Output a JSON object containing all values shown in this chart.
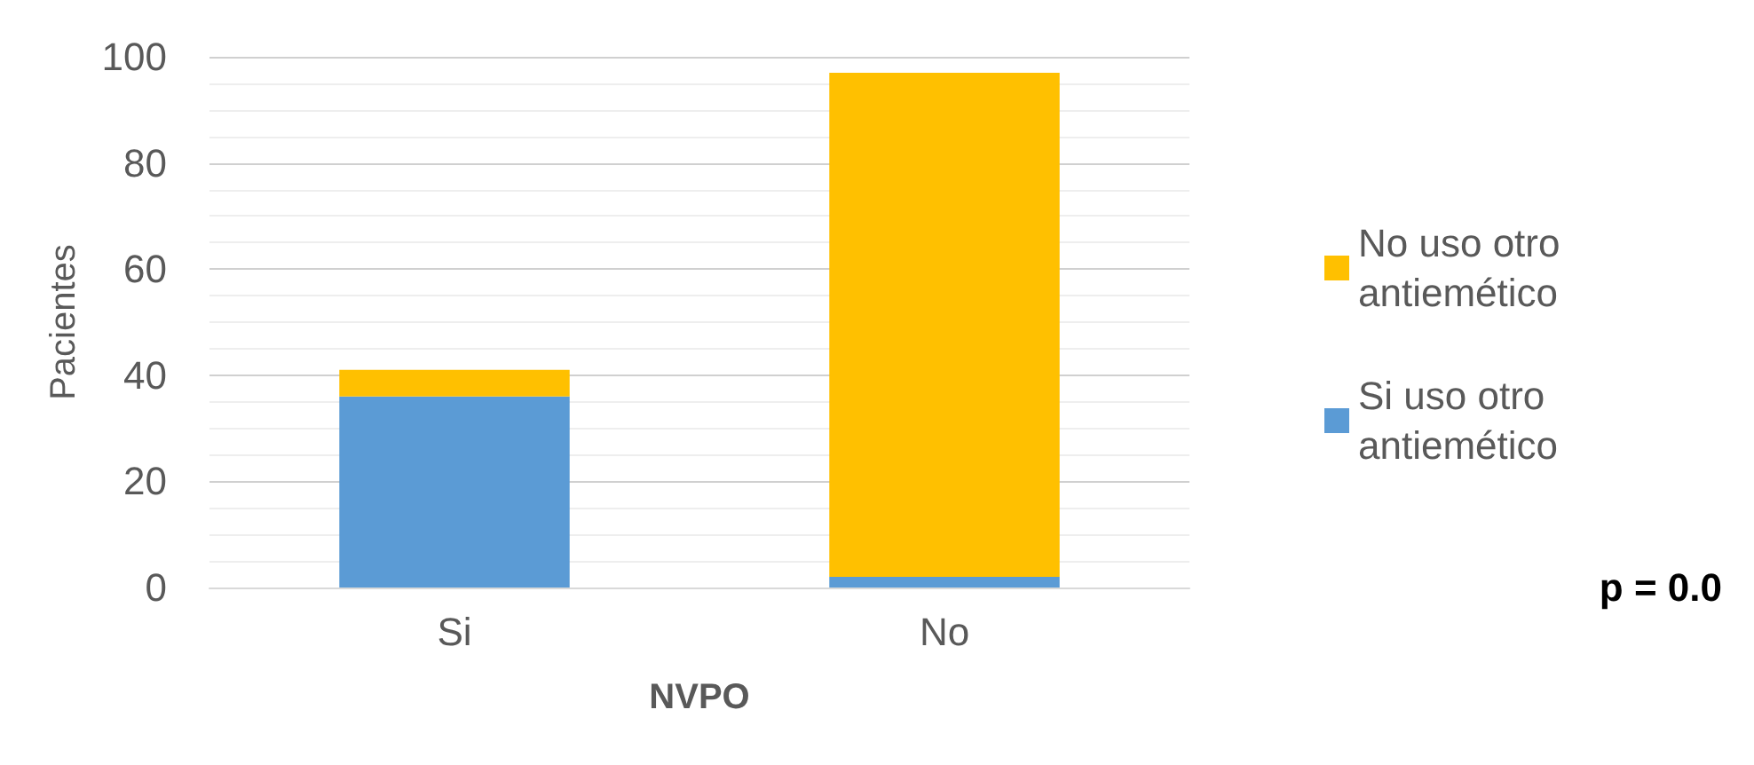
{
  "chart_data": {
    "type": "bar",
    "stacked": true,
    "xlabel": "NVPO",
    "ylabel": "Pacientes",
    "categories": [
      "Si",
      "No"
    ],
    "series": [
      {
        "name": "Si uso otro antiemético",
        "color": "#5b9bd5",
        "values": [
          36,
          2
        ]
      },
      {
        "name": "No uso otro antiemético",
        "color": "#ffc000",
        "values": [
          5,
          95
        ]
      }
    ],
    "ylim": [
      0,
      100
    ],
    "yticks": [
      0,
      20,
      40,
      60,
      80,
      100
    ],
    "grid": "y",
    "legend": "right",
    "annotations": [
      "p = 0.0"
    ]
  }
}
